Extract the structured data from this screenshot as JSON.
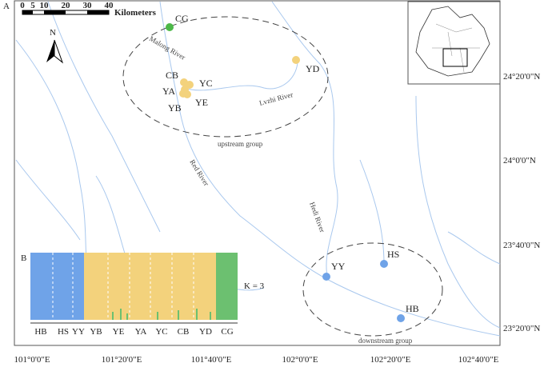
{
  "panel_labels": [
    "A",
    "B"
  ],
  "scale_bar": {
    "ticks": [
      "0",
      "5",
      "10",
      "20",
      "30",
      "40"
    ],
    "unit": "Kilometers"
  },
  "north": "N",
  "sites": [
    {
      "name": "CG",
      "color": "#4cb848"
    },
    {
      "name": "YD",
      "color": "#f3d27c"
    },
    {
      "name": "CB",
      "color": "#f3d27c"
    },
    {
      "name": "YC",
      "color": "#f3d27c"
    },
    {
      "name": "YA",
      "color": "#f3d27c"
    },
    {
      "name": "YE",
      "color": "#f3d27c"
    },
    {
      "name": "YB",
      "color": "#f3d27c"
    },
    {
      "name": "HS",
      "color": "#6fa3e8"
    },
    {
      "name": "YY",
      "color": "#6fa3e8"
    },
    {
      "name": "HB",
      "color": "#6fa3e8"
    }
  ],
  "rivers": [
    "Malong River",
    "Lvzhi River",
    "Red River",
    "Hedi River"
  ],
  "groups": [
    "upstream group",
    "downstream group"
  ],
  "latitude_labels": [
    "24°20'0\"N",
    "24°0'0\"N",
    "23°40'0\"N",
    "23°20'0\"N"
  ],
  "longitude_labels": [
    "101°0'0\"E",
    "101°20'0\"E",
    "101°40'0\"E",
    "102°0'0\"E",
    "102°20'0\"E",
    "102°40'0\"E"
  ],
  "structure": {
    "populations": [
      "HB",
      "HS",
      "YY",
      "YB",
      "YE",
      "YA",
      "YC",
      "CB",
      "YD",
      "CG"
    ],
    "clusters": [
      "#6fa3e8",
      "#f3d27c",
      "#6cc070"
    ],
    "k_label": "K = 3"
  }
}
